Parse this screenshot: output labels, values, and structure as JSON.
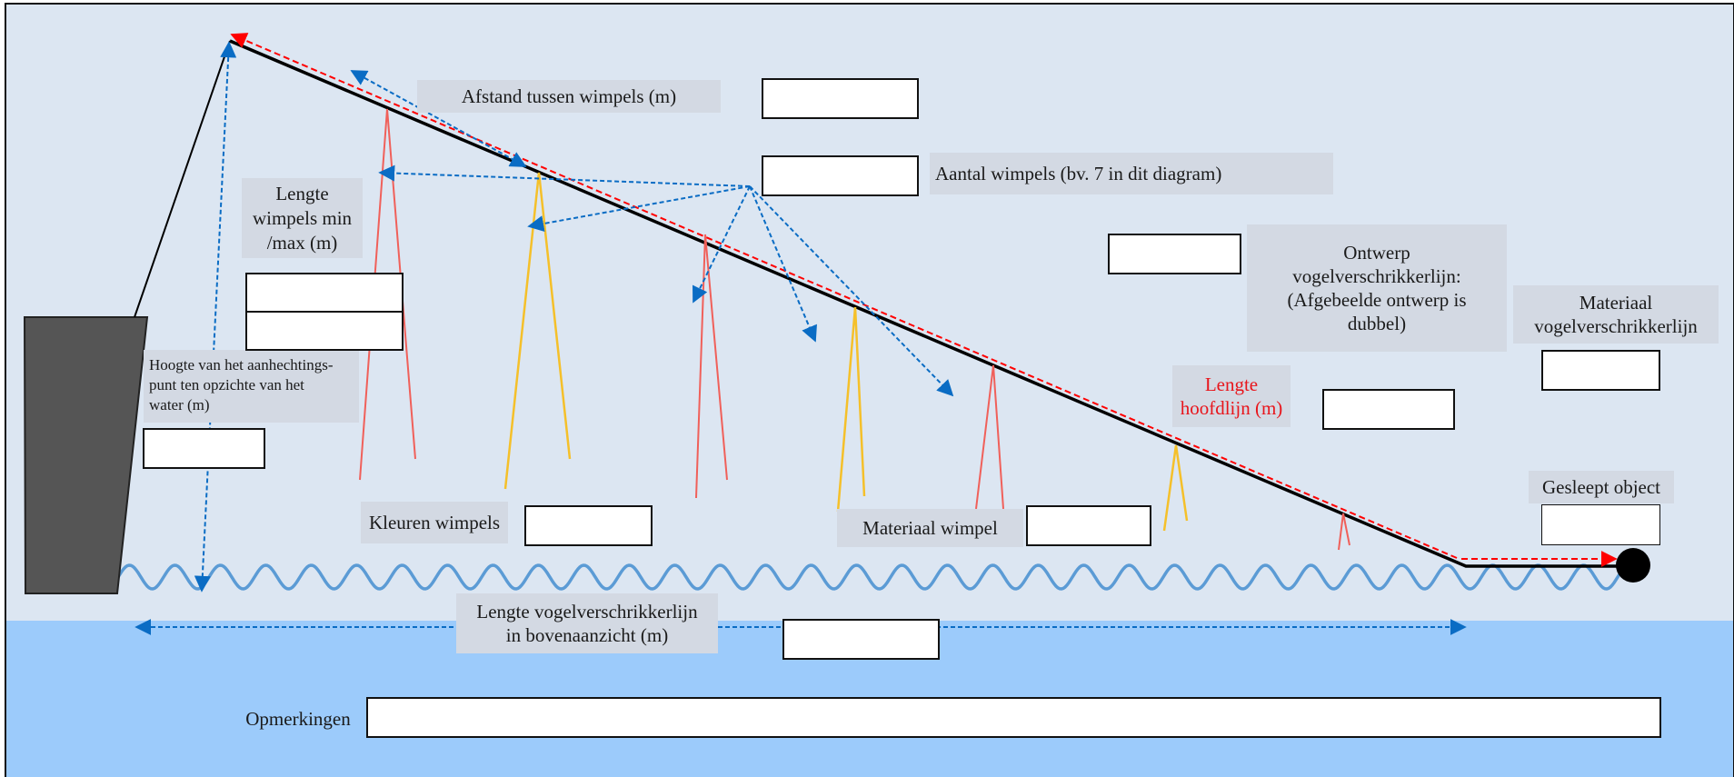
{
  "labels": {
    "spacing": "Afstand tussen wimpels (m)",
    "count": "Aantal wimpels (bv. 7 in dit diagram)",
    "length_minmax": "Lengte\nwimpels min\n/max (m)",
    "design": "Ontwerp\nvogelverschrikkerlijn:\n(Afgebeelde ontwerp is\ndubbel)",
    "line_material": "Materiaal\nvogelverschrikkerlijn",
    "attach_height": "Hoogte van het aanhechtings-\npunt ten opzichte van het\nwater (m)",
    "main_line_length": "Lengte\nhoofdlijn (m)",
    "towed_object": "Gesleept object",
    "colors": "Kleuren wimpels",
    "streamer_material": "Materiaal wimpel",
    "aerial_length": "Lengte vogelverschrikkerlijn\nin bovenaanzicht (m)",
    "remarks": "Opmerkingen"
  },
  "fields": {
    "spacing": "",
    "count": "",
    "length_min": "",
    "length_max": "",
    "design": "",
    "line_material": "",
    "attach_height": "",
    "main_line_length": "",
    "towed_object": "",
    "colors": "",
    "streamer_material": "",
    "aerial_length": "",
    "remarks": ""
  },
  "colors": {
    "sky": "#dce6f2",
    "water": "#9ccbfb",
    "wave": "#5b9bd5",
    "vessel": "#555555",
    "main_line": "#000000",
    "length_arrow": "#ff0000",
    "pointer_arrow": "#0a6cc4",
    "streamer_red": "#f0605a",
    "streamer_yellow": "#f5c02a",
    "label_bg": "#d3d9e3",
    "highlight_text": "#e8151b"
  }
}
